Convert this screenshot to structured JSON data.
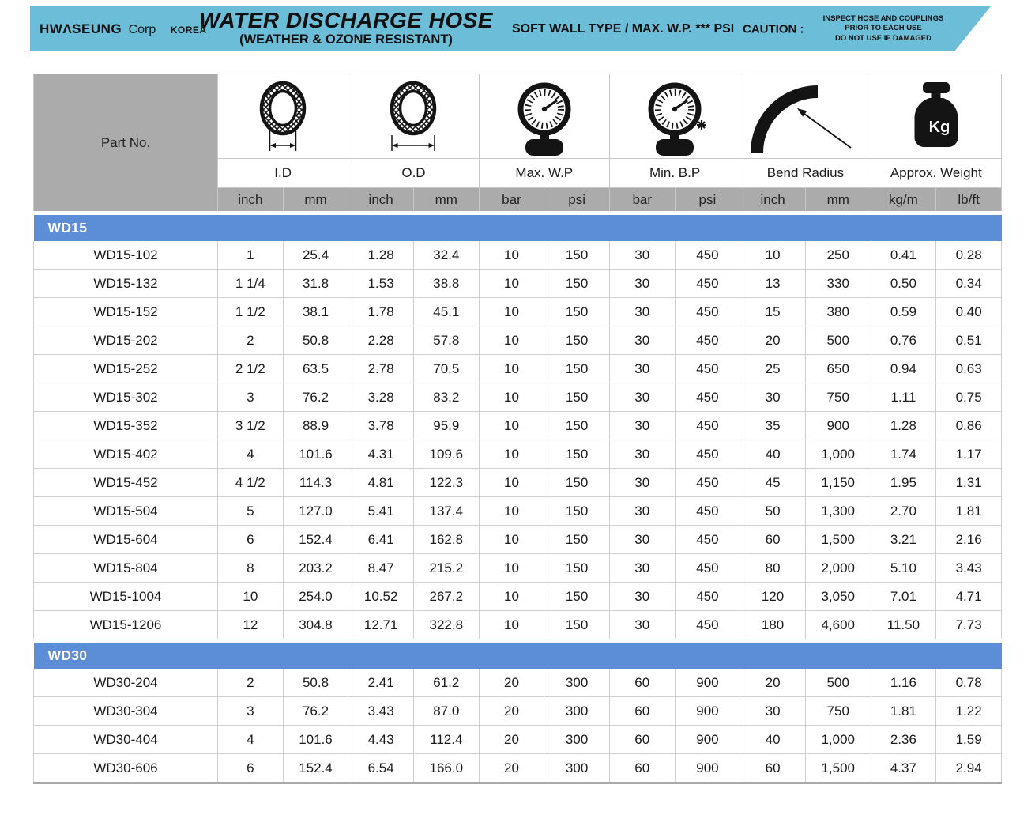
{
  "banner": {
    "logo": {
      "brand": "HWΛSEUNG",
      "corp": "Corp",
      "country": "KOREA"
    },
    "title": "WATER DISCHARGE HOSE",
    "subtitle": "(WEATHER & OZONE RESISTANT)",
    "spec": "SOFT WALL TYPE / MAX. W.P. *** PSI",
    "caution_label": "CAUTION :",
    "caution_lines": [
      "INSPECT HOSE AND COUPLINGS",
      "PRIOR TO EACH USE",
      "DO NOT USE IF DAMAGED"
    ]
  },
  "colors": {
    "banner_blue": "#6CBDD8",
    "section_blue": "#5C8ED8",
    "header_gray": "#ABABAB"
  },
  "table": {
    "part_no_header": "Part No.",
    "groups": [
      {
        "label": "I.D",
        "icon": "hose-cross-section-id-icon",
        "units": [
          "inch",
          "mm"
        ]
      },
      {
        "label": "O.D",
        "icon": "hose-cross-section-od-icon",
        "units": [
          "inch",
          "mm"
        ]
      },
      {
        "label": "Max. W.P",
        "icon": "pressure-gauge-icon",
        "units": [
          "bar",
          "psi"
        ]
      },
      {
        "label": "Min. B.P",
        "icon": "pressure-gauge-burst-icon",
        "units": [
          "bar",
          "psi"
        ]
      },
      {
        "label": "Bend Radius",
        "icon": "bend-radius-icon",
        "units": [
          "inch",
          "mm"
        ]
      },
      {
        "label": "Approx. Weight",
        "icon": "weight-kg-icon",
        "units": [
          "kg/m",
          "lb/ft"
        ]
      }
    ],
    "sections": [
      {
        "name": "WD15",
        "rows": [
          [
            "WD15-102",
            "1",
            "25.4",
            "1.28",
            "32.4",
            "10",
            "150",
            "30",
            "450",
            "10",
            "250",
            "0.41",
            "0.28"
          ],
          [
            "WD15-132",
            "1 1/4",
            "31.8",
            "1.53",
            "38.8",
            "10",
            "150",
            "30",
            "450",
            "13",
            "330",
            "0.50",
            "0.34"
          ],
          [
            "WD15-152",
            "1 1/2",
            "38.1",
            "1.78",
            "45.1",
            "10",
            "150",
            "30",
            "450",
            "15",
            "380",
            "0.59",
            "0.40"
          ],
          [
            "WD15-202",
            "2",
            "50.8",
            "2.28",
            "57.8",
            "10",
            "150",
            "30",
            "450",
            "20",
            "500",
            "0.76",
            "0.51"
          ],
          [
            "WD15-252",
            "2 1/2",
            "63.5",
            "2.78",
            "70.5",
            "10",
            "150",
            "30",
            "450",
            "25",
            "650",
            "0.94",
            "0.63"
          ],
          [
            "WD15-302",
            "3",
            "76.2",
            "3.28",
            "83.2",
            "10",
            "150",
            "30",
            "450",
            "30",
            "750",
            "1.11",
            "0.75"
          ],
          [
            "WD15-352",
            "3 1/2",
            "88.9",
            "3.78",
            "95.9",
            "10",
            "150",
            "30",
            "450",
            "35",
            "900",
            "1.28",
            "0.86"
          ],
          [
            "WD15-402",
            "4",
            "101.6",
            "4.31",
            "109.6",
            "10",
            "150",
            "30",
            "450",
            "40",
            "1,000",
            "1.74",
            "1.17"
          ],
          [
            "WD15-452",
            "4 1/2",
            "114.3",
            "4.81",
            "122.3",
            "10",
            "150",
            "30",
            "450",
            "45",
            "1,150",
            "1.95",
            "1.31"
          ],
          [
            "WD15-504",
            "5",
            "127.0",
            "5.41",
            "137.4",
            "10",
            "150",
            "30",
            "450",
            "50",
            "1,300",
            "2.70",
            "1.81"
          ],
          [
            "WD15-604",
            "6",
            "152.4",
            "6.41",
            "162.8",
            "10",
            "150",
            "30",
            "450",
            "60",
            "1,500",
            "3.21",
            "2.16"
          ],
          [
            "WD15-804",
            "8",
            "203.2",
            "8.47",
            "215.2",
            "10",
            "150",
            "30",
            "450",
            "80",
            "2,000",
            "5.10",
            "3.43"
          ],
          [
            "WD15-1004",
            "10",
            "254.0",
            "10.52",
            "267.2",
            "10",
            "150",
            "30",
            "450",
            "120",
            "3,050",
            "7.01",
            "4.71"
          ],
          [
            "WD15-1206",
            "12",
            "304.8",
            "12.71",
            "322.8",
            "10",
            "150",
            "30",
            "450",
            "180",
            "4,600",
            "11.50",
            "7.73"
          ]
        ]
      },
      {
        "name": "WD30",
        "rows": [
          [
            "WD30-204",
            "2",
            "50.8",
            "2.41",
            "61.2",
            "20",
            "300",
            "60",
            "900",
            "20",
            "500",
            "1.16",
            "0.78"
          ],
          [
            "WD30-304",
            "3",
            "76.2",
            "3.43",
            "87.0",
            "20",
            "300",
            "60",
            "900",
            "30",
            "750",
            "1.81",
            "1.22"
          ],
          [
            "WD30-404",
            "4",
            "101.6",
            "4.43",
            "112.4",
            "20",
            "300",
            "60",
            "900",
            "40",
            "1,000",
            "2.36",
            "1.59"
          ],
          [
            "WD30-606",
            "6",
            "152.4",
            "6.54",
            "166.0",
            "20",
            "300",
            "60",
            "900",
            "60",
            "1,500",
            "4.37",
            "2.94"
          ]
        ]
      }
    ]
  }
}
